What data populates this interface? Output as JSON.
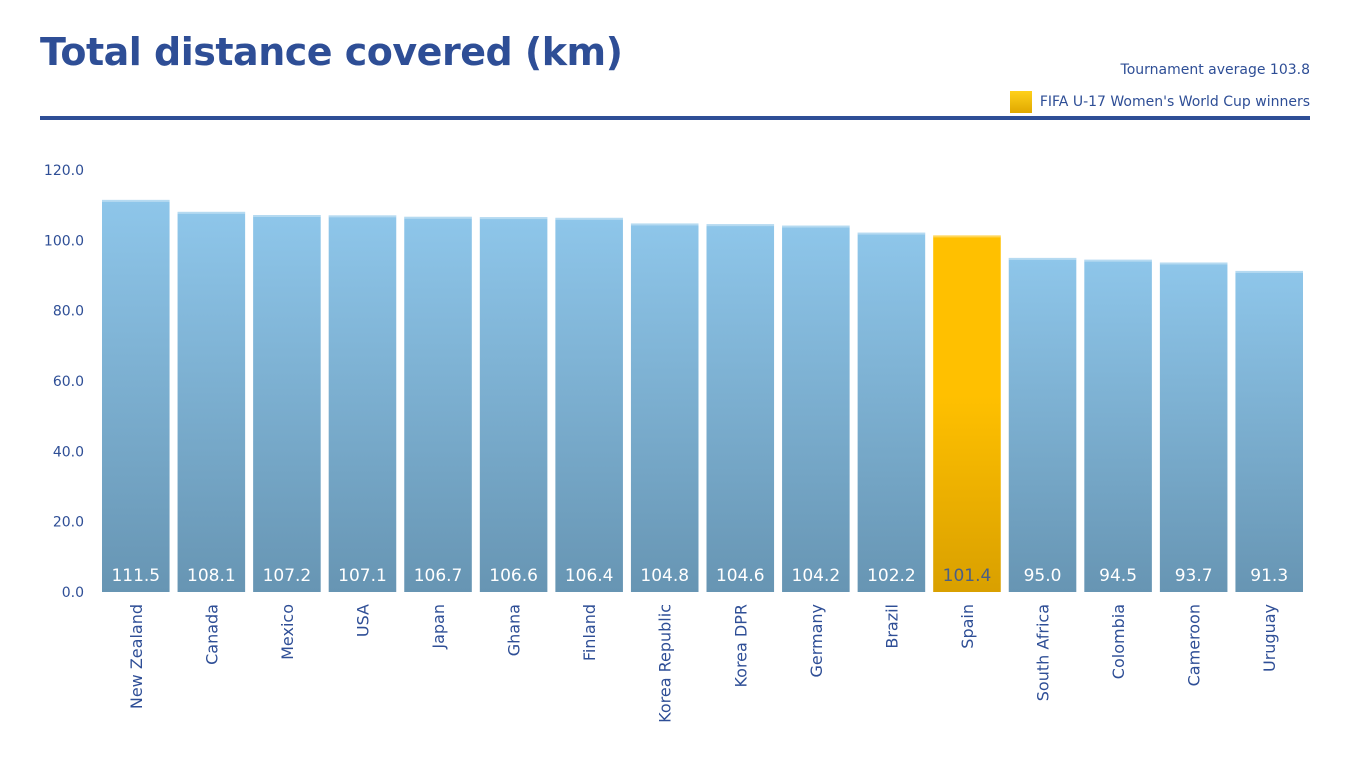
{
  "chart_data": {
    "type": "bar",
    "title": "Total distance covered (km)",
    "subtitle": "Tournament average 103.8",
    "legend": [
      {
        "label": "FIFA U-17 Women's World Cup winners",
        "color": "#ffc000"
      }
    ],
    "categories": [
      "New Zealand",
      "Canada",
      "Mexico",
      "USA",
      "Japan",
      "Ghana",
      "Finland",
      "Korea Republic",
      "Korea DPR",
      "Germany",
      "Brazil",
      "Spain",
      "South Africa",
      "Colombia",
      "Cameroon",
      "Uruguay"
    ],
    "values": [
      111.5,
      108.1,
      107.2,
      107.1,
      106.7,
      106.6,
      106.4,
      104.8,
      104.6,
      104.2,
      102.2,
      101.4,
      95.0,
      94.5,
      93.7,
      91.3
    ],
    "value_labels": [
      "111.5",
      "108.1",
      "107.2",
      "107.1",
      "106.7",
      "106.6",
      "106.4",
      "104.8",
      "104.6",
      "104.2",
      "102.2",
      "101.4",
      "95.0",
      "94.5",
      "93.7",
      "91.3"
    ],
    "highlighted": [
      "Spain"
    ],
    "ylim": [
      0,
      120
    ],
    "yticks": [
      0,
      20,
      40,
      60,
      80,
      100,
      120
    ],
    "ytick_labels": [
      "0.0",
      "20.0",
      "40.0",
      "60.0",
      "80.0",
      "100.0",
      "120.0"
    ],
    "xlabel": "",
    "ylabel": "",
    "grid": false,
    "legend_position": "top-right",
    "colors": {
      "bar_top": "#8ec6ea",
      "bar_bottom": "#6795b3",
      "winner_top": "#ffc000",
      "winner_bottom": "#d9a000",
      "text": "#2e4e96",
      "value_label": "#ffffff",
      "winner_value_label": "#4a5f85"
    }
  }
}
